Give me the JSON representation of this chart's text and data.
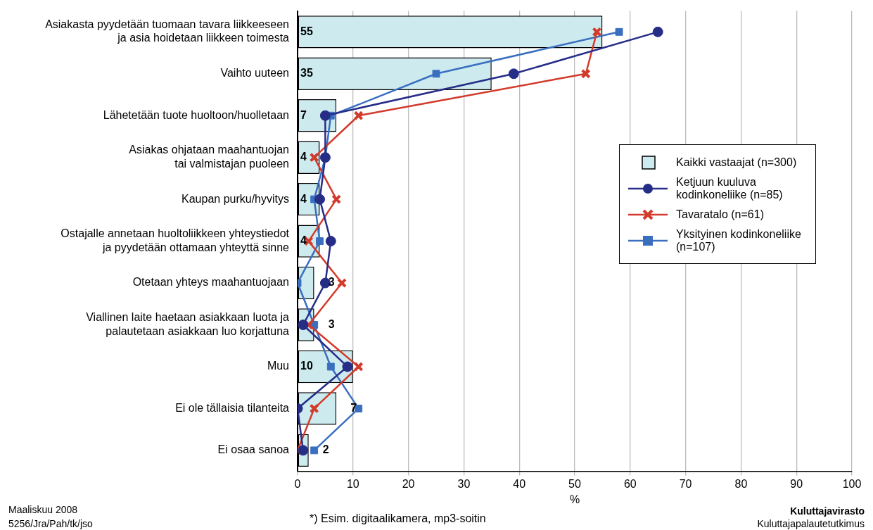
{
  "chart_data": {
    "type": "bar",
    "orientation": "horizontal",
    "xlabel": "%",
    "categories": [
      "Asiakasta pyydetään tuomaan tavara liikkeeseen\nja asia hoidetaan liikkeen toimesta",
      "Vaihto uuteen",
      "Lähetetään tuote huoltoon/huolletaan",
      "Asiakas ohjataan maahantuojan\ntai valmistajan puoleen",
      "Kaupan purku/hyvitys",
      "Ostajalle annetaan huoltoliikkeen yhteystiedot\nja pyydetään ottamaan yhteyttä sinne",
      "Otetaan yhteys maahantuojaan",
      "Viallinen laite haetaan asiakkaan luota ja\npalautetaan asiakkaan luo korjattuna",
      "Muu",
      "Ei ole tällaisia tilanteita",
      "Ei osaa sanoa"
    ],
    "series": [
      {
        "name": "Kaikki vastaajat (n=300)",
        "color": "#cdebef",
        "values": [
          55,
          35,
          7,
          4,
          4,
          4,
          3,
          3,
          10,
          7,
          2
        ],
        "value_labels": [
          "55",
          "35",
          "7",
          "4",
          "4",
          "4",
          "3",
          "3",
          "10",
          "7",
          "2"
        ]
      },
      {
        "name": "Ketjuun kuuluva kodinkoneliike (n=85)",
        "type": "line",
        "marker": "circle",
        "color": "#262d87",
        "values": [
          65,
          39,
          5,
          5,
          4,
          6,
          5,
          1,
          9,
          0,
          1
        ]
      },
      {
        "name": "Tavaratalo (n=61)",
        "type": "line",
        "marker": "cross",
        "color": "#d23a2b",
        "values": [
          54,
          52,
          11,
          3,
          7,
          2,
          8,
          2,
          11,
          3,
          0
        ]
      },
      {
        "name": "Yksityinen kodinkoneliike (n=107)",
        "type": "line",
        "marker": "square",
        "color": "#3a6fc0",
        "values": [
          58,
          25,
          6,
          5,
          3,
          4,
          0,
          3,
          6,
          11,
          3
        ]
      }
    ],
    "xlim": [
      0,
      100
    ],
    "xticks": [
      0,
      10,
      20,
      30,
      40,
      50,
      60,
      70,
      80,
      90,
      100
    ],
    "grid": "x",
    "legend": "right",
    "line_style": "solid",
    "annotations": [
      "Maaliskuu 2008",
      "5256/Jra/Pah/tk/jso",
      "*) Esim. digitaalikamera, mp3-soitin",
      "Kuluttajavirasto",
      "Kuluttajapalautetutkimus"
    ]
  }
}
